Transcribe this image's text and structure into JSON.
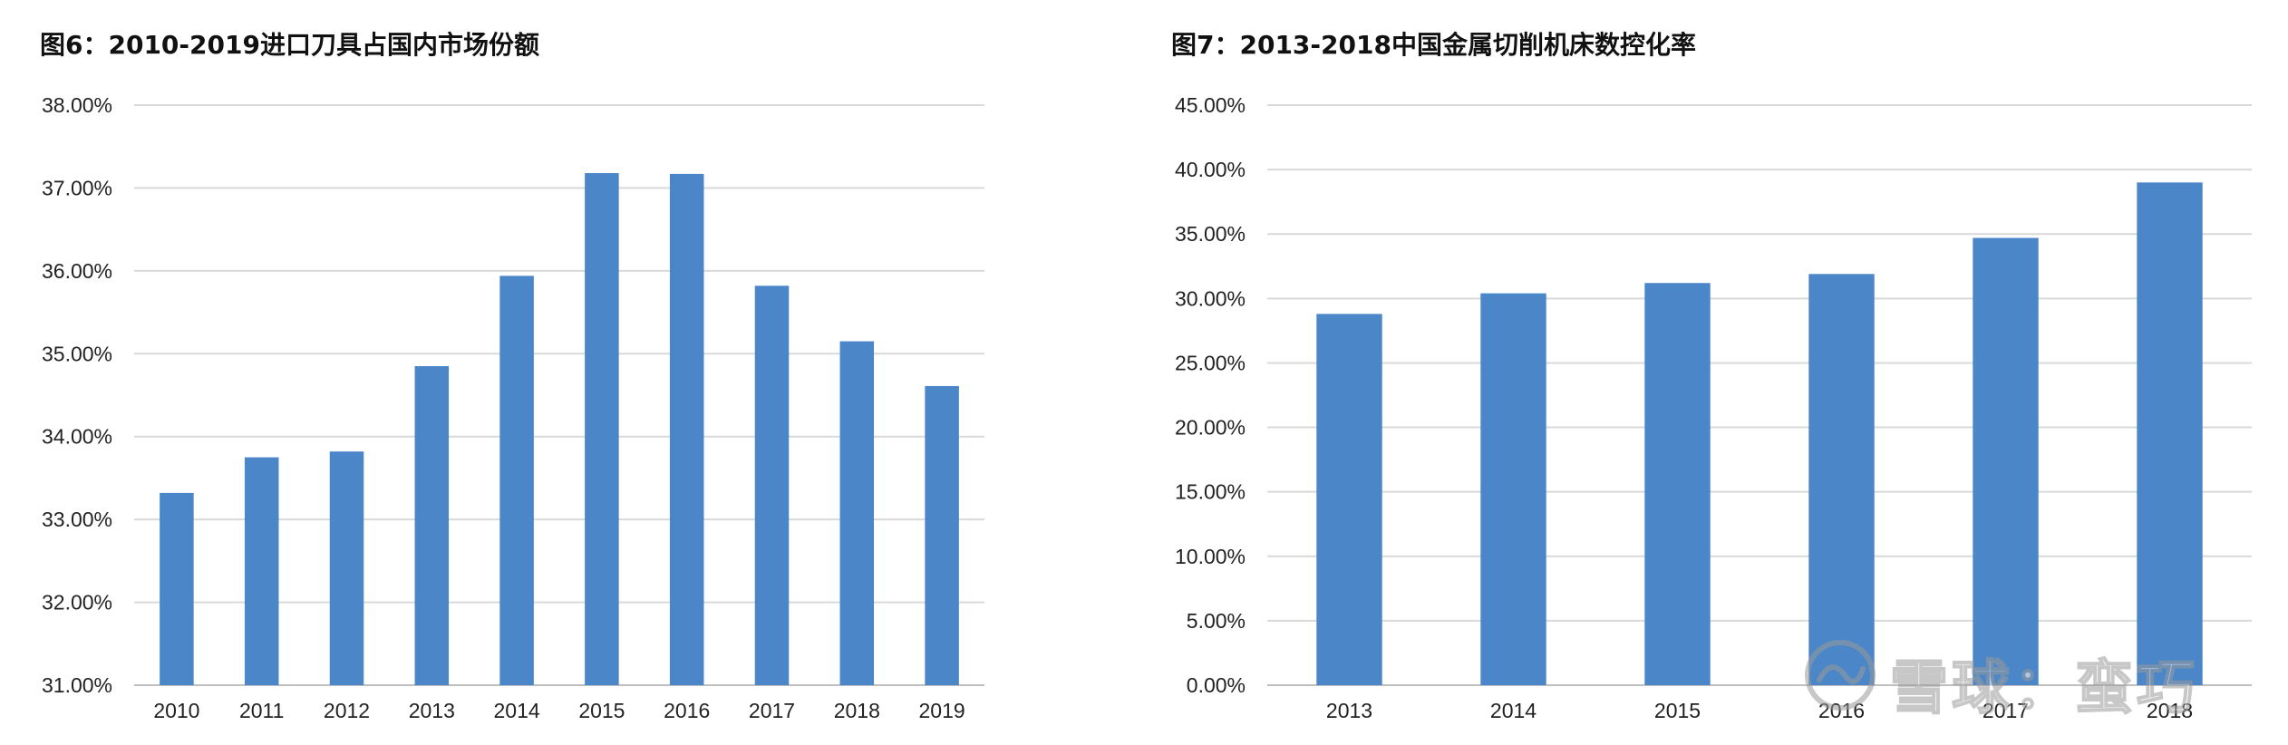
{
  "chart_data": [
    {
      "type": "bar",
      "title": "图6：2010-2019进口刀具占国内市场份额",
      "xlabel": "",
      "ylabel": "",
      "categories": [
        "2010",
        "2011",
        "2012",
        "2013",
        "2014",
        "2015",
        "2016",
        "2017",
        "2018",
        "2019"
      ],
      "values": [
        33.32,
        33.75,
        33.82,
        34.85,
        35.94,
        37.18,
        37.17,
        35.82,
        35.15,
        34.61
      ],
      "ylim": [
        31,
        38
      ],
      "yticks": [
        "31.00%",
        "32.00%",
        "33.00%",
        "34.00%",
        "35.00%",
        "36.00%",
        "37.00%",
        "38.00%"
      ],
      "grid": true,
      "legend": "none",
      "bar_color": "#4A86C8"
    },
    {
      "type": "bar",
      "title": "图7：2013-2018中国金属切削机床数控化率",
      "xlabel": "",
      "ylabel": "",
      "categories": [
        "2013",
        "2014",
        "2015",
        "2016",
        "2017",
        "2018"
      ],
      "values": [
        28.8,
        30.4,
        31.2,
        31.9,
        34.7,
        39.0
      ],
      "ylim": [
        0,
        45
      ],
      "yticks": [
        "0.00%",
        "5.00%",
        "10.00%",
        "15.00%",
        "20.00%",
        "25.00%",
        "30.00%",
        "35.00%",
        "40.00%",
        "45.00%"
      ],
      "grid": true,
      "legend": "none",
      "bar_color": "#4A86C8"
    }
  ],
  "watermark": {
    "text": "雪球：蛮巧",
    "icon": "snowball-logo-icon"
  }
}
